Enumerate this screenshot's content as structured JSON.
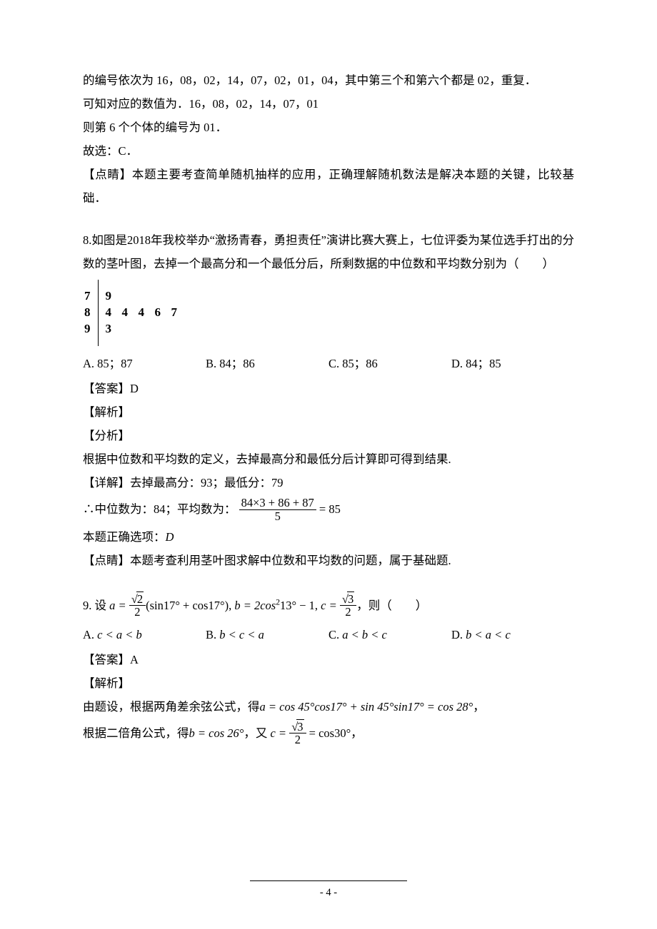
{
  "para1": "的编号依次为 16，08，02，14，07，02，01，04，其中第三个和第六个都是 02，重复．",
  "para2": "可知对应的数值为．16，08，02，14，07，01",
  "para3": "则第 6 个个体的编号为 01．",
  "para4": "故选：C．",
  "para5": "【点睛】本题主要考查简单随机抽样的应用，正确理解随机数法是解决本题的关键，比较基础．",
  "q8": {
    "number": "8.",
    "stem_a": "如图是",
    "year": "2018",
    "stem_b": "年我校举办“激扬青春，勇担责任”演讲比赛大赛上，七位评委为某位选手打出的分数的茎叶图，去掉一个最高分和一个最低分后，所剩数据的中位数和平均数分别为（　　）",
    "stemleaf": {
      "stems": [
        "7",
        "8",
        "9"
      ],
      "leaves": [
        "9",
        "4  4  4  6  7",
        "3"
      ]
    },
    "optA_label": "A. ",
    "optA": "85；87",
    "optB_label": "B. ",
    "optB": "84；86",
    "optC_label": "C. ",
    "optC": "85；86",
    "optD_label": "D. ",
    "optD": "84；85",
    "answer": "【答案】D",
    "jiexi": "【解析】",
    "fenxi": "【分析】",
    "fenxi_body": "根据中位数和平均数的定义，去掉最高分和最低分后计算即可得到结果.",
    "detail_label": "【详解】",
    "detail_1": "去掉最高分：",
    "detail_hi": "93",
    "detail_2": "；最低分：",
    "detail_lo": "79",
    "median_pre": "∴中位数为：",
    "median_val": "84",
    "mean_pre": "；平均数为：",
    "mean_num": "84×3 + 86 + 87",
    "mean_den": "5",
    "mean_eq": "= 85",
    "correct_pre": "本题正确选项：",
    "correct_val": "D",
    "dianjing": "【点睛】本题考查利用茎叶图求解中位数和平均数的问题，属于基础题."
  },
  "q9": {
    "number": "9. ",
    "pre": "设",
    "tail": "，则（　　）",
    "a_eq": "a =",
    "a_num_sqrt": "2",
    "a_den": "2",
    "a_trig": "(sin17° + cos17°),",
    "b_eq": "b = 2cos",
    "b_exp": "2",
    "b_trig": "13° − 1,",
    "c_eq": "c =",
    "c_num_sqrt": "3",
    "c_den": "2",
    "optA_label": "A. ",
    "optA": "c < a < b",
    "optB_label": "B. ",
    "optB": "b < c < a",
    "optC_label": "C. ",
    "optC": "a < b < c",
    "optD_label": "D. ",
    "optD": "b < a < c",
    "answer": "【答案】A",
    "jiexi": "【解析】",
    "body1_pre": "由题设，根据两角差余弦公式，得",
    "body1_eq": "a = cos 45°cos17° + sin 45°sin17° = cos 28°",
    "body1_post": "，",
    "body2_pre": "根据二倍角公式，得",
    "body2_b": "b = cos 26°",
    "body2_mid": "，又",
    "body2_c_pre": "c =",
    "body2_c_sqrt": "3",
    "body2_c_den": "2",
    "body2_c_post": "= cos30°",
    "body2_tail": "，"
  },
  "footer": {
    "page": "- 4 -"
  }
}
